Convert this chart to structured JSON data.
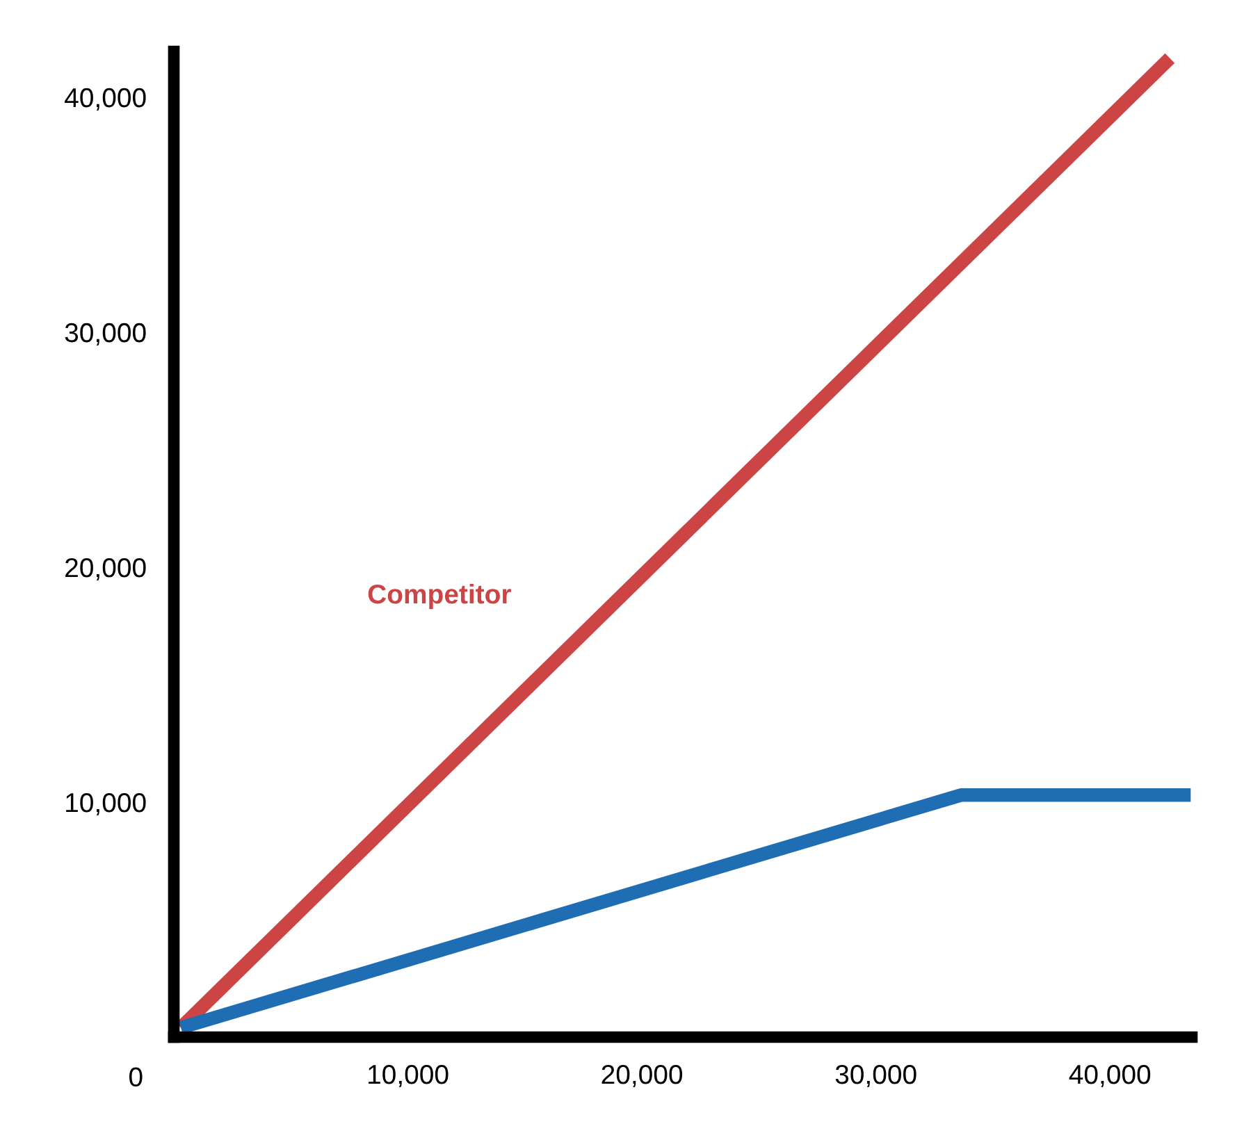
{
  "chart_data": {
    "type": "line",
    "xlim": [
      0,
      43500
    ],
    "ylim": [
      0,
      41950
    ],
    "xticks": [
      {
        "value": 10000,
        "label": "10,000"
      },
      {
        "value": 20000,
        "label": "20,000"
      },
      {
        "value": 30000,
        "label": "30,000"
      },
      {
        "value": 40000,
        "label": "40,000"
      }
    ],
    "yticks": [
      {
        "value": 10000,
        "label": "10,000"
      },
      {
        "value": 20000,
        "label": "20,000"
      },
      {
        "value": 30000,
        "label": "30,000"
      },
      {
        "value": 40000,
        "label": "40,000"
      }
    ],
    "annotations": [
      "0"
    ],
    "grid": false,
    "legend": false,
    "marker": "none",
    "line_style": "solid",
    "series": [
      {
        "name": "Competitor",
        "color": "#cc4444",
        "x": [
          300,
          42560
        ],
        "values": [
          400,
          41660
        ]
      },
      {
        "color": "#1f6eb4",
        "x": [
          300,
          33630,
          43450
        ],
        "values": [
          400,
          10300,
          10300
        ]
      }
    ]
  }
}
